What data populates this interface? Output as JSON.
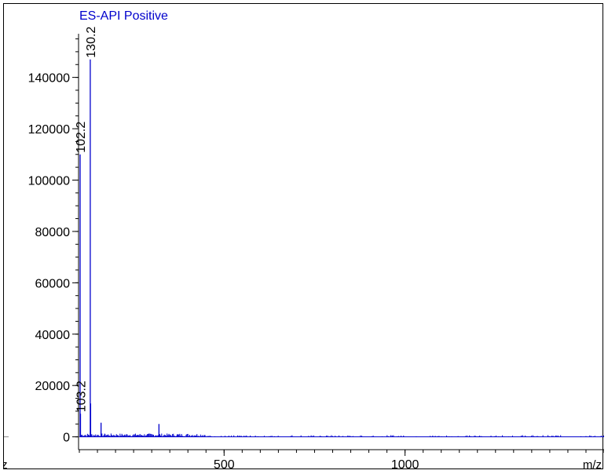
{
  "chart_data": {
    "type": "line",
    "title": "ES-API Positive",
    "title_color": "#0000cc",
    "series_color": "#0000cc",
    "axis_color": "#000000",
    "xlabel": "m/z",
    "ylabel": "",
    "xlim": [
      100,
      1550
    ],
    "ylim": [
      -5000,
      157000
    ],
    "xticks": [
      500,
      1000
    ],
    "xtick_labels": [
      "500",
      "1000"
    ],
    "x_minor_step": 50,
    "yticks": [
      0,
      20000,
      40000,
      60000,
      80000,
      100000,
      120000,
      140000
    ],
    "ytick_labels": [
      "0",
      "20000",
      "40000",
      "60000",
      "80000",
      "100000",
      "120000",
      "140000"
    ],
    "y_minor_step": 5000,
    "grid": false,
    "peaks": [
      {
        "mz": 102.2,
        "intensity": 110000,
        "label": "102.2"
      },
      {
        "mz": 103.2,
        "intensity": 9000,
        "label": "103.2"
      },
      {
        "mz": 130.2,
        "intensity": 147000,
        "label": "130.2"
      },
      {
        "mz": 131.2,
        "intensity": 13000,
        "label": ""
      },
      {
        "mz": 160,
        "intensity": 5500,
        "label": ""
      },
      {
        "mz": 171,
        "intensity": 1000,
        "label": ""
      },
      {
        "mz": 205,
        "intensity": 600,
        "label": ""
      },
      {
        "mz": 236,
        "intensity": 500,
        "label": ""
      },
      {
        "mz": 260,
        "intensity": 700,
        "label": ""
      },
      {
        "mz": 285,
        "intensity": 600,
        "label": ""
      },
      {
        "mz": 320,
        "intensity": 5000,
        "label": ""
      },
      {
        "mz": 340,
        "intensity": 400,
        "label": ""
      },
      {
        "mz": 385,
        "intensity": 300,
        "label": ""
      },
      {
        "mz": 430,
        "intensity": 300,
        "label": ""
      }
    ],
    "noise_ranges": [
      [
        105,
        450
      ],
      [
        450,
        1550
      ]
    ]
  }
}
